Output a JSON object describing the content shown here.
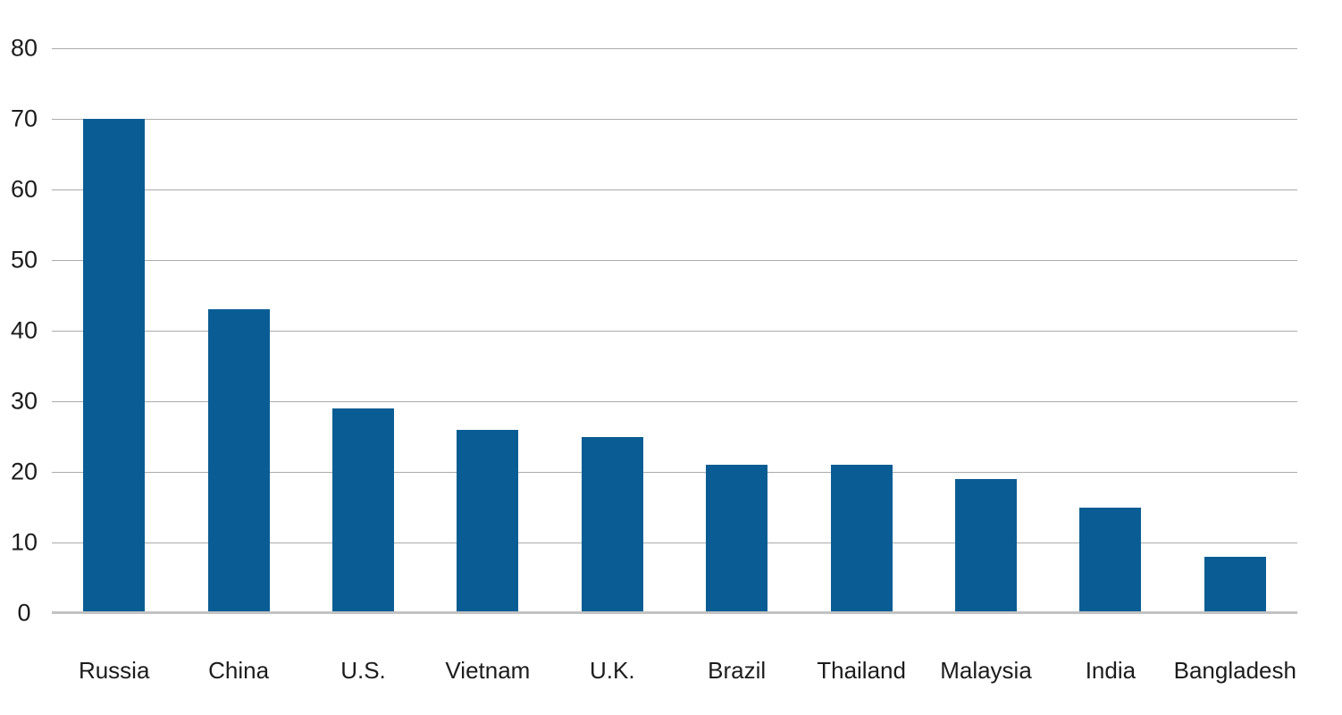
{
  "chart_data": {
    "type": "bar",
    "categories": [
      "Russia",
      "China",
      "U.S.",
      "Vietnam",
      "U.K.",
      "Brazil",
      "Thailand",
      "Malaysia",
      "India",
      "Bangladesh"
    ],
    "values": [
      70,
      43,
      29,
      26,
      25,
      21,
      21,
      19,
      15,
      8
    ],
    "title": "",
    "xlabel": "",
    "ylabel": "",
    "ylim": [
      0,
      80
    ],
    "yticks": [
      0,
      10,
      20,
      30,
      40,
      50,
      60,
      70,
      80
    ],
    "grid": true,
    "legend": false,
    "bar_color": "#0a5d94",
    "gridline_color": "#ababab",
    "baseline_color": "#c2c2c2",
    "tick_label_color": "#1c1c1c"
  }
}
